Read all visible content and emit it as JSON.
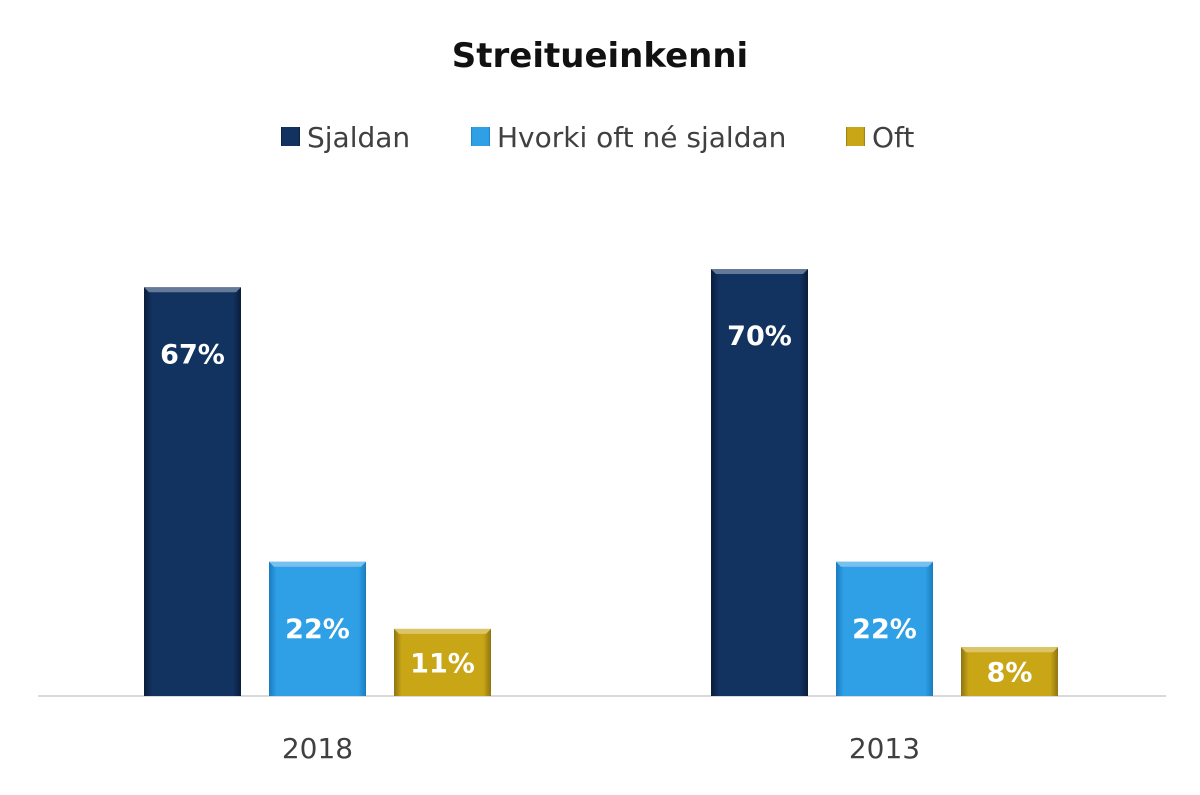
{
  "chart_data": {
    "type": "bar",
    "title": "Streitueinkenni",
    "categories": [
      "2018",
      "2013"
    ],
    "series": [
      {
        "name": "Sjaldan",
        "values": [
          67,
          70
        ],
        "labels": [
          "67%",
          "70%"
        ],
        "color": "#12325f",
        "edge": "#0a1d3b"
      },
      {
        "name": "Hvorki oft né sjaldan",
        "values": [
          22,
          22
        ],
        "labels": [
          "22%",
          "22%"
        ],
        "color": "#2f9fe6",
        "edge": "#1a7cbf"
      },
      {
        "name": "Oft",
        "values": [
          11,
          8
        ],
        "labels": [
          "11%",
          "8%"
        ],
        "color": "#c9a616",
        "edge": "#8e7410"
      }
    ],
    "value_unit": "%",
    "ylim": [
      0,
      70
    ],
    "y_axis_visible": false,
    "grid": false,
    "legend_position": "top"
  }
}
